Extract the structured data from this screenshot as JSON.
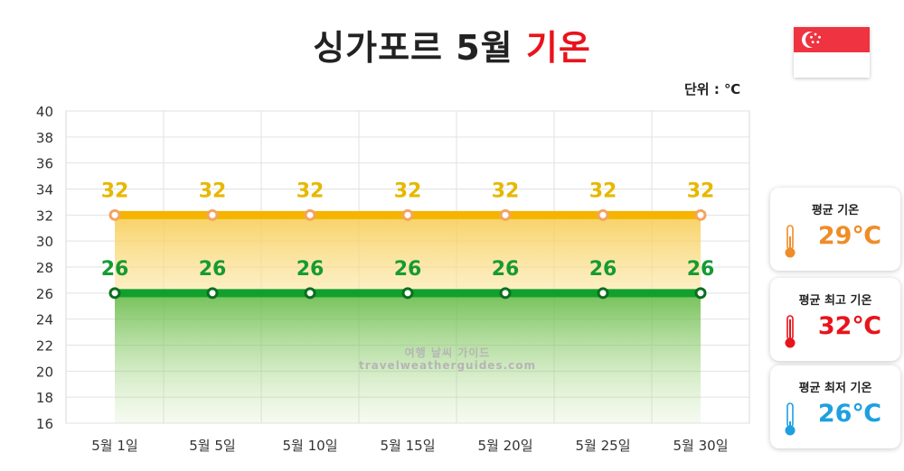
{
  "title": {
    "main": "싱가포르 5월",
    "accent": "기온"
  },
  "unit_label": "단위 : ℃",
  "watermark": {
    "line1": "여행 날씨 가이드",
    "line2": "travelweatherguides.com"
  },
  "flag": {
    "country": "singapore",
    "colors": [
      "#ef3340",
      "#ffffff"
    ]
  },
  "chart_data": {
    "type": "line",
    "categories": [
      "5월 1일",
      "5월 5일",
      "5월 10일",
      "5월 15일",
      "5월 20일",
      "5월 25일",
      "5월 30일"
    ],
    "series": [
      {
        "values": [
          32,
          32,
          32,
          32,
          32,
          32,
          32
        ],
        "color": "#f5b400",
        "label_color": "#e6b800",
        "marker_color": "#f4a460"
      },
      {
        "values": [
          26,
          26,
          26,
          26,
          26,
          26,
          26
        ],
        "color": "#12a02c",
        "label_color": "#159b33",
        "marker_color": "#0c6e1e"
      }
    ],
    "ylim": [
      16,
      40
    ],
    "yticks": [
      16,
      18,
      20,
      22,
      24,
      26,
      28,
      30,
      32,
      34,
      36,
      38,
      40
    ],
    "grid": true
  },
  "stats": [
    {
      "label": "평균 기온",
      "value": "29℃",
      "color": "#f08c28",
      "icon": "thermometer-half-icon"
    },
    {
      "label": "평균 최고 기온",
      "value": "32℃",
      "color": "#e8141c",
      "icon": "thermometer-high-icon"
    },
    {
      "label": "평균 최저 기온",
      "value": "26℃",
      "color": "#1ea0e0",
      "icon": "thermometer-low-icon"
    }
  ]
}
